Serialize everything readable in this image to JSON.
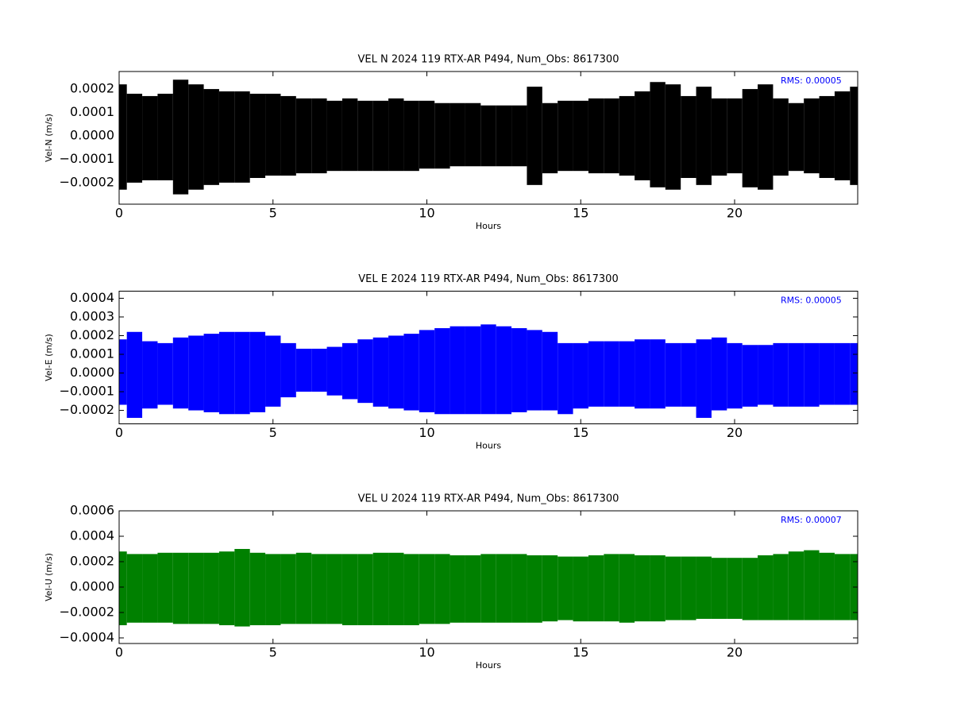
{
  "chart_data": [
    {
      "type": "range",
      "title": "VEL N 2024 119 RTX-AR  P494, Num_Obs: 8617300",
      "x_label": "Hours",
      "y_label": "Vel-N (m/s)",
      "annotation": "RMS:  0.00005",
      "annotation_color": "#0000ff",
      "color": "#000000",
      "x": [
        0,
        0.5,
        1,
        1.5,
        2,
        2.5,
        3,
        3.5,
        4,
        4.5,
        5,
        5.5,
        6,
        6.5,
        7,
        7.5,
        8,
        8.5,
        9,
        9.5,
        10,
        10.5,
        11,
        11.5,
        12,
        12.5,
        13,
        13.5,
        14,
        14.5,
        15,
        15.5,
        16,
        16.5,
        17,
        17.5,
        18,
        18.5,
        19,
        19.5,
        20,
        20.5,
        21,
        21.5,
        22,
        22.5,
        23,
        23.5,
        24
      ],
      "upper": [
        0.00022,
        0.00018,
        0.00017,
        0.00018,
        0.00024,
        0.00022,
        0.0002,
        0.00019,
        0.00019,
        0.00018,
        0.00018,
        0.00017,
        0.00016,
        0.00016,
        0.00015,
        0.00016,
        0.00015,
        0.00015,
        0.00016,
        0.00015,
        0.00015,
        0.00014,
        0.00014,
        0.00014,
        0.00013,
        0.00013,
        0.00013,
        0.00021,
        0.00014,
        0.00015,
        0.00015,
        0.00016,
        0.00016,
        0.00017,
        0.00019,
        0.00023,
        0.00022,
        0.00017,
        0.00021,
        0.00016,
        0.00016,
        0.0002,
        0.00022,
        0.00016,
        0.00014,
        0.00016,
        0.00017,
        0.00019,
        0.00021
      ],
      "lower": [
        -0.00023,
        -0.0002,
        -0.00019,
        -0.00019,
        -0.00025,
        -0.00023,
        -0.00021,
        -0.0002,
        -0.0002,
        -0.00018,
        -0.00017,
        -0.00017,
        -0.00016,
        -0.00016,
        -0.00015,
        -0.00015,
        -0.00015,
        -0.00015,
        -0.00015,
        -0.00015,
        -0.00014,
        -0.00014,
        -0.00013,
        -0.00013,
        -0.00013,
        -0.00013,
        -0.00013,
        -0.00021,
        -0.00016,
        -0.00015,
        -0.00015,
        -0.00016,
        -0.00016,
        -0.00017,
        -0.00019,
        -0.00022,
        -0.00023,
        -0.00018,
        -0.00021,
        -0.00017,
        -0.00016,
        -0.00022,
        -0.00023,
        -0.00017,
        -0.00015,
        -0.00016,
        -0.00018,
        -0.00019,
        -0.00021
      ],
      "xlim": [
        0,
        24
      ],
      "xticks": [
        0,
        5,
        10,
        15,
        20
      ],
      "ylim": [
        -0.000292,
        0.000275
      ],
      "yticks": [
        {
          "value": -0.0002,
          "label": "−0.0002"
        },
        {
          "value": -0.0001,
          "label": "−0.0001"
        },
        {
          "value": 0,
          "label": "0.0000"
        },
        {
          "value": 0.0001,
          "label": "0.0001"
        },
        {
          "value": 0.0002,
          "label": "0.0002"
        }
      ]
    },
    {
      "type": "range",
      "title": "VEL E 2024 119 RTX-AR  P494, Num_Obs: 8617300",
      "x_label": "Hours",
      "y_label": "Vel-E (m/s)",
      "annotation": "RMS:  0.00005",
      "annotation_color": "#0000ff",
      "color": "#0000ff",
      "x": [
        0,
        0.5,
        1,
        1.5,
        2,
        2.5,
        3,
        3.5,
        4,
        4.5,
        5,
        5.5,
        6,
        6.5,
        7,
        7.5,
        8,
        8.5,
        9,
        9.5,
        10,
        10.5,
        11,
        11.5,
        12,
        12.5,
        13,
        13.5,
        14,
        14.5,
        15,
        15.5,
        16,
        16.5,
        17,
        17.5,
        18,
        18.5,
        19,
        19.5,
        20,
        20.5,
        21,
        21.5,
        22,
        22.5,
        23,
        23.5,
        24
      ],
      "upper": [
        0.00018,
        0.00022,
        0.00017,
        0.00016,
        0.00019,
        0.0002,
        0.00021,
        0.00022,
        0.00022,
        0.00022,
        0.0002,
        0.00016,
        0.00013,
        0.00013,
        0.00014,
        0.00016,
        0.00018,
        0.00019,
        0.0002,
        0.00021,
        0.00023,
        0.00024,
        0.00025,
        0.00025,
        0.00026,
        0.00025,
        0.00024,
        0.00023,
        0.00022,
        0.00016,
        0.00016,
        0.00017,
        0.00017,
        0.00017,
        0.00018,
        0.00018,
        0.00016,
        0.00016,
        0.00018,
        0.00019,
        0.00016,
        0.00015,
        0.00015,
        0.00016,
        0.00016,
        0.00016,
        0.00016,
        0.00016,
        0.00016
      ],
      "lower": [
        -0.00017,
        -0.00024,
        -0.00019,
        -0.00017,
        -0.00019,
        -0.0002,
        -0.00021,
        -0.00022,
        -0.00022,
        -0.00021,
        -0.00018,
        -0.00013,
        -0.0001,
        -0.0001,
        -0.00012,
        -0.00014,
        -0.00016,
        -0.00018,
        -0.00019,
        -0.0002,
        -0.00021,
        -0.00022,
        -0.00022,
        -0.00022,
        -0.00022,
        -0.00022,
        -0.00021,
        -0.0002,
        -0.0002,
        -0.00022,
        -0.00019,
        -0.00018,
        -0.00018,
        -0.00018,
        -0.00019,
        -0.00019,
        -0.00018,
        -0.00018,
        -0.00024,
        -0.0002,
        -0.00019,
        -0.00018,
        -0.00017,
        -0.00018,
        -0.00018,
        -0.00018,
        -0.00017,
        -0.00017,
        -0.00017
      ],
      "xlim": [
        0,
        24
      ],
      "xticks": [
        0,
        5,
        10,
        15,
        20
      ],
      "ylim": [
        -0.000272,
        0.000438
      ],
      "yticks": [
        {
          "value": -0.0002,
          "label": "−0.0002"
        },
        {
          "value": -0.0001,
          "label": "−0.0001"
        },
        {
          "value": 0,
          "label": "0.0000"
        },
        {
          "value": 0.0001,
          "label": "0.0001"
        },
        {
          "value": 0.0002,
          "label": "0.0002"
        },
        {
          "value": 0.0003,
          "label": "0.0003"
        },
        {
          "value": 0.0004,
          "label": "0.0004"
        }
      ]
    },
    {
      "type": "range",
      "title": "VEL U 2024 119 RTX-AR  P494, Num_Obs: 8617300",
      "x_label": "Hours",
      "y_label": "Vel-U (m/s)",
      "annotation": "RMS:  0.00007",
      "annotation_color": "#0000ff",
      "color": "#008000",
      "x": [
        0,
        0.5,
        1,
        1.5,
        2,
        2.5,
        3,
        3.5,
        4,
        4.5,
        5,
        5.5,
        6,
        6.5,
        7,
        7.5,
        8,
        8.5,
        9,
        9.5,
        10,
        10.5,
        11,
        11.5,
        12,
        12.5,
        13,
        13.5,
        14,
        14.5,
        15,
        15.5,
        16,
        16.5,
        17,
        17.5,
        18,
        18.5,
        19,
        19.5,
        20,
        20.5,
        21,
        21.5,
        22,
        22.5,
        23,
        23.5,
        24
      ],
      "upper": [
        0.00028,
        0.00026,
        0.00026,
        0.00027,
        0.00027,
        0.00027,
        0.00027,
        0.00028,
        0.0003,
        0.00027,
        0.00026,
        0.00026,
        0.00027,
        0.00026,
        0.00026,
        0.00026,
        0.00026,
        0.00027,
        0.00027,
        0.00026,
        0.00026,
        0.00026,
        0.00025,
        0.00025,
        0.00026,
        0.00026,
        0.00026,
        0.00025,
        0.00025,
        0.00024,
        0.00024,
        0.00025,
        0.00026,
        0.00026,
        0.00025,
        0.00025,
        0.00024,
        0.00024,
        0.00024,
        0.00023,
        0.00023,
        0.00023,
        0.00025,
        0.00026,
        0.00028,
        0.00029,
        0.00027,
        0.00026,
        0.00026
      ],
      "lower": [
        -0.0003,
        -0.00028,
        -0.00028,
        -0.00028,
        -0.00029,
        -0.00029,
        -0.00029,
        -0.0003,
        -0.00031,
        -0.0003,
        -0.0003,
        -0.00029,
        -0.00029,
        -0.00029,
        -0.00029,
        -0.0003,
        -0.0003,
        -0.0003,
        -0.0003,
        -0.0003,
        -0.00029,
        -0.00029,
        -0.00028,
        -0.00028,
        -0.00028,
        -0.00028,
        -0.00028,
        -0.00028,
        -0.00027,
        -0.00026,
        -0.00027,
        -0.00027,
        -0.00027,
        -0.00028,
        -0.00027,
        -0.00027,
        -0.00026,
        -0.00026,
        -0.00025,
        -0.00025,
        -0.00025,
        -0.00026,
        -0.00026,
        -0.00026,
        -0.00026,
        -0.00026,
        -0.00026,
        -0.00026,
        -0.00026
      ],
      "xlim": [
        0,
        24
      ],
      "xticks": [
        0,
        5,
        10,
        15,
        20
      ],
      "ylim": [
        -0.000444,
        0.0006
      ],
      "yticks": [
        {
          "value": -0.0004,
          "label": "−0.0004"
        },
        {
          "value": -0.0002,
          "label": "−0.0002"
        },
        {
          "value": 0,
          "label": "0.0000"
        },
        {
          "value": 0.0002,
          "label": "0.0002"
        },
        {
          "value": 0.0004,
          "label": "0.0004"
        },
        {
          "value": 0.0006,
          "label": "0.0006"
        }
      ]
    }
  ]
}
